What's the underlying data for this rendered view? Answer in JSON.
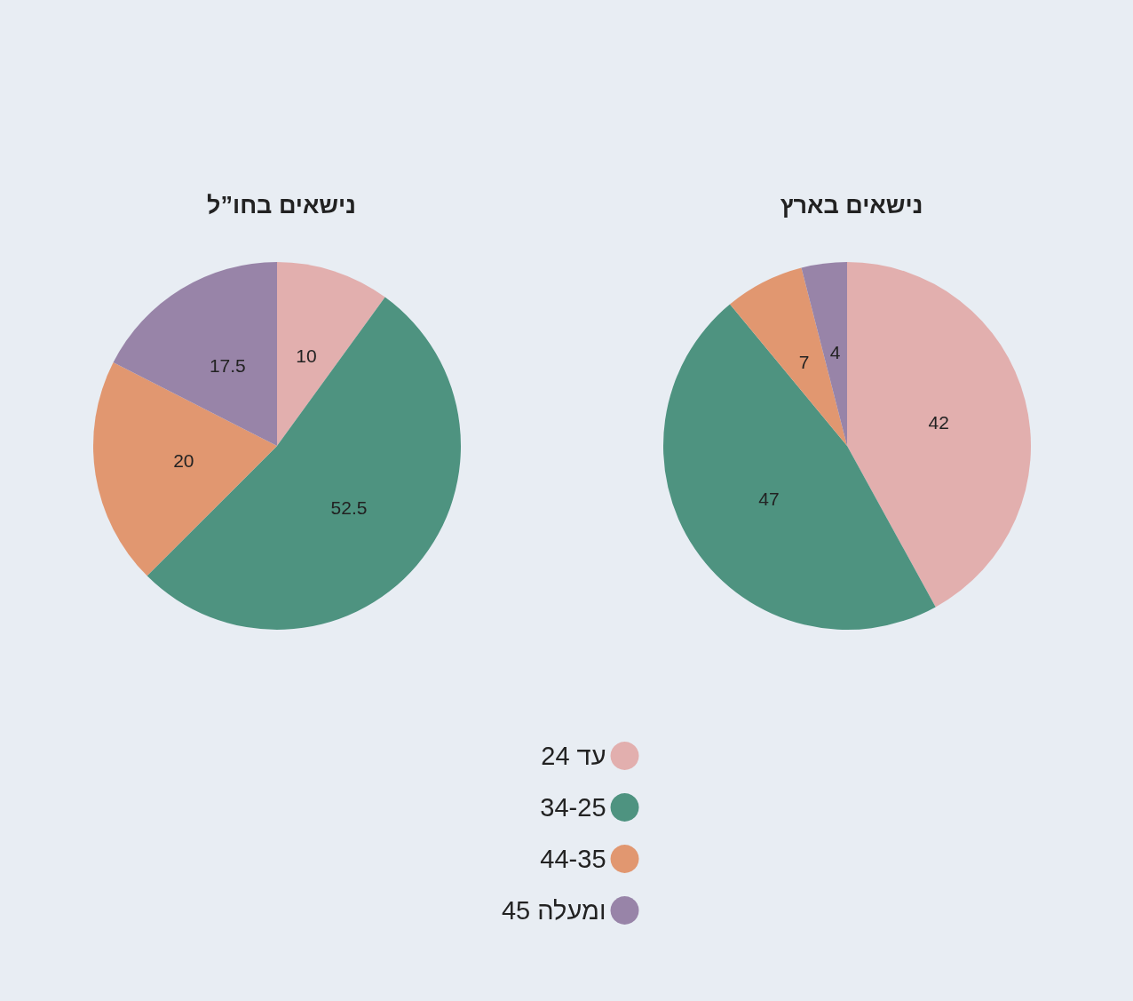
{
  "chart_data": {
    "type": "pie",
    "categories": [
      "עד 24",
      "34-25",
      "44-35",
      "45 ומעלה"
    ],
    "colors": [
      "#e2afae",
      "#4e9380",
      "#e19770",
      "#9884a8"
    ],
    "data_labels": true,
    "legend": "bottom",
    "series": [
      {
        "name": "נישאים בחו”ל",
        "values": [
          10,
          52.5,
          20,
          17.5
        ]
      },
      {
        "name": "נישאים בארץ",
        "values": [
          42,
          47,
          7,
          4
        ]
      }
    ]
  }
}
